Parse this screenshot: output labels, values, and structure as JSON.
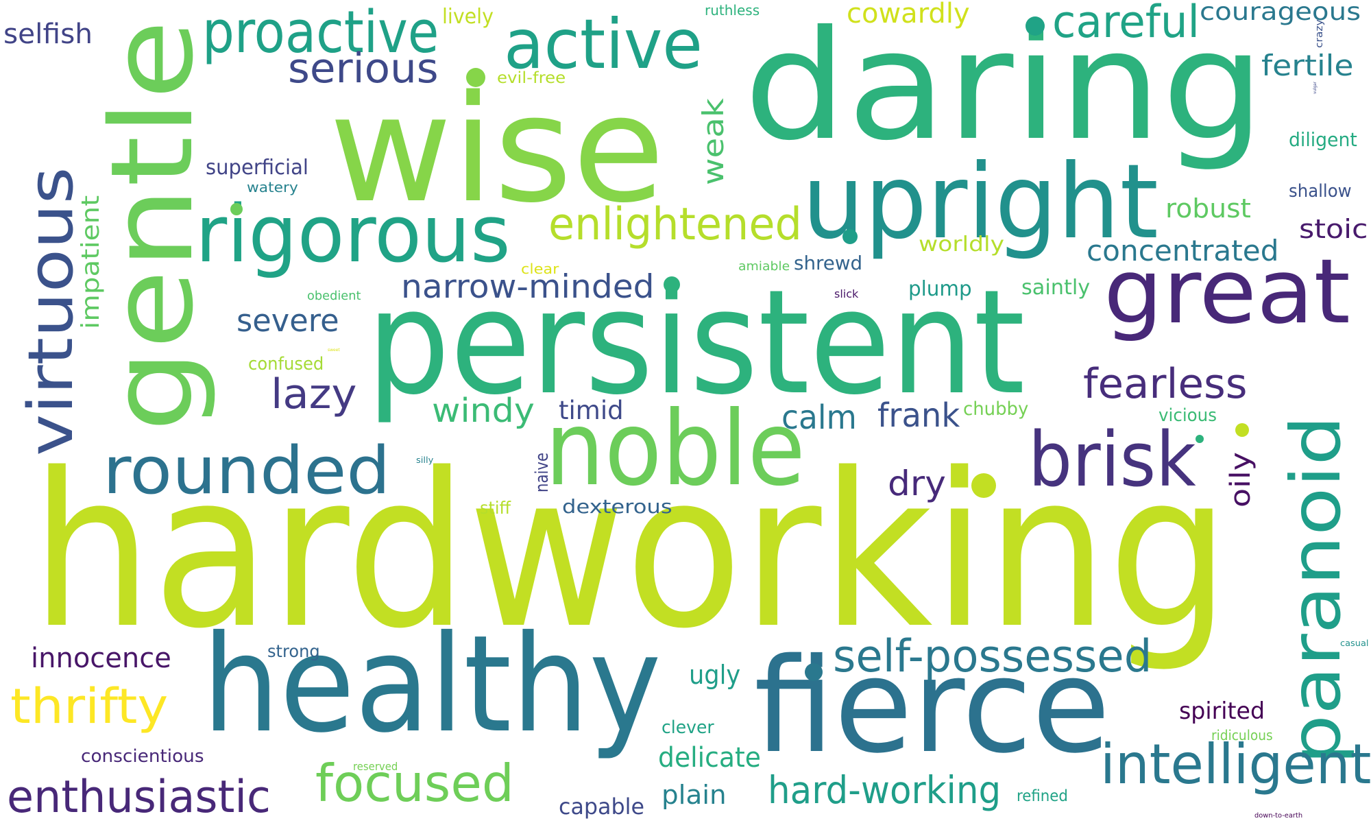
{
  "words": [
    {
      "text": "hardworking",
      "color": "#c2df23"
    },
    {
      "text": "persistent",
      "color": "#2db27d"
    },
    {
      "text": "daring",
      "color": "#2db27d"
    },
    {
      "text": "wise",
      "color": "#86d549"
    },
    {
      "text": "gentle",
      "color": "#6ccd5a"
    },
    {
      "text": "healthy",
      "color": "#2a788e"
    },
    {
      "text": "fierce",
      "color": "#2c728e"
    },
    {
      "text": "upright",
      "color": "#21918c"
    },
    {
      "text": "noble",
      "color": "#6ccd5a"
    },
    {
      "text": "great",
      "color": "#482878"
    },
    {
      "text": "paranoid",
      "color": "#1f9e89"
    },
    {
      "text": "rigorous",
      "color": "#20a386"
    },
    {
      "text": "virtuous",
      "color": "#3b528b"
    },
    {
      "text": "brisk",
      "color": "#46337e"
    },
    {
      "text": "rounded",
      "color": "#2c728e"
    },
    {
      "text": "active",
      "color": "#1fa187"
    },
    {
      "text": "proactive",
      "color": "#1fa187"
    },
    {
      "text": "intelligent",
      "color": "#2a788e"
    },
    {
      "text": "enthusiastic",
      "color": "#482878"
    },
    {
      "text": "focused",
      "color": "#6ece58"
    },
    {
      "text": "thrifty",
      "color": "#fde725"
    },
    {
      "text": "self-possessed",
      "color": "#2a788e"
    },
    {
      "text": "enlightened",
      "color": "#b5de2b"
    },
    {
      "text": "serious",
      "color": "#3e4989"
    },
    {
      "text": "careful",
      "color": "#20a386"
    },
    {
      "text": "hard-working",
      "color": "#1f9e89"
    },
    {
      "text": "fearless",
      "color": "#472d7b"
    },
    {
      "text": "narrow-minded",
      "color": "#3b528b"
    },
    {
      "text": "innocence",
      "color": "#481668"
    },
    {
      "text": "concentrated",
      "color": "#2a788e"
    },
    {
      "text": "lazy",
      "color": "#443a83"
    },
    {
      "text": "windy",
      "color": "#3bbb75"
    },
    {
      "text": "calm",
      "color": "#2a788e"
    },
    {
      "text": "frank",
      "color": "#3b528b"
    },
    {
      "text": "impatient",
      "color": "#5ec962"
    },
    {
      "text": "weak",
      "color": "#4ac16d"
    },
    {
      "text": "cowardly",
      "color": "#d0e11c"
    },
    {
      "text": "courageous",
      "color": "#2a788e"
    },
    {
      "text": "fertile",
      "color": "#26828e"
    },
    {
      "text": "selfish",
      "color": "#414487"
    },
    {
      "text": "severe",
      "color": "#355f8d"
    },
    {
      "text": "delicate",
      "color": "#26ad81"
    },
    {
      "text": "plain",
      "color": "#26828e"
    },
    {
      "text": "oily",
      "color": "#471063"
    },
    {
      "text": "dry",
      "color": "#472a7a"
    },
    {
      "text": "robust",
      "color": "#5ec962"
    },
    {
      "text": "stoic",
      "color": "#481a6c"
    },
    {
      "text": "ugly",
      "color": "#1f9e89"
    },
    {
      "text": "spirited",
      "color": "#440154"
    },
    {
      "text": "timid",
      "color": "#3e4989"
    },
    {
      "text": "capable",
      "color": "#3e4989"
    },
    {
      "text": "superficial",
      "color": "#414487"
    },
    {
      "text": "dexterous",
      "color": "#33638d"
    },
    {
      "text": "lively",
      "color": "#c2df23"
    },
    {
      "text": "saintly",
      "color": "#4ac16d"
    },
    {
      "text": "diligent",
      "color": "#25ab82"
    },
    {
      "text": "plump",
      "color": "#1f9a8a"
    },
    {
      "text": "worldly",
      "color": "#b5de2b"
    },
    {
      "text": "shrewd",
      "color": "#33638d"
    },
    {
      "text": "shallow",
      "color": "#3b528b"
    },
    {
      "text": "conscientious",
      "color": "#482878"
    },
    {
      "text": "chubby",
      "color": "#75d054"
    },
    {
      "text": "vicious",
      "color": "#3bbb75"
    },
    {
      "text": "clever",
      "color": "#20a386"
    },
    {
      "text": "naive",
      "color": "#414487"
    },
    {
      "text": "confused",
      "color": "#a5db36"
    },
    {
      "text": "strong",
      "color": "#33638d"
    },
    {
      "text": "stiff",
      "color": "#b5de2b"
    },
    {
      "text": "evil-free",
      "color": "#b5de2b"
    },
    {
      "text": "refined",
      "color": "#20a386"
    },
    {
      "text": "ruthless",
      "color": "#2db27d"
    },
    {
      "text": "watery",
      "color": "#26828e"
    },
    {
      "text": "ridiculous",
      "color": "#75d054"
    },
    {
      "text": "obedient",
      "color": "#4ac16d"
    },
    {
      "text": "clear",
      "color": "#dde318"
    },
    {
      "text": "amiable",
      "color": "#5ec962"
    },
    {
      "text": "reserved",
      "color": "#75d054"
    },
    {
      "text": "crazy",
      "color": "#3b528b"
    },
    {
      "text": "slick",
      "color": "#481668"
    },
    {
      "text": "silly",
      "color": "#26828e"
    },
    {
      "text": "casual",
      "color": "#21918c"
    },
    {
      "text": "down-to-earth",
      "color": "#440154"
    },
    {
      "text": "vulgar",
      "color": "#3e4989"
    },
    {
      "text": "sweet",
      "color": "#dde318"
    }
  ],
  "dots": [
    {
      "color": "#86d549"
    },
    {
      "color": "#20a386"
    },
    {
      "color": "#c2df23"
    },
    {
      "color": "#2db27d"
    },
    {
      "color": "#c2df23"
    },
    {
      "color": "#1f9e89"
    },
    {
      "color": "#6ccd5a"
    },
    {
      "color": "#2db27d"
    },
    {
      "color": "#2a788e"
    }
  ]
}
